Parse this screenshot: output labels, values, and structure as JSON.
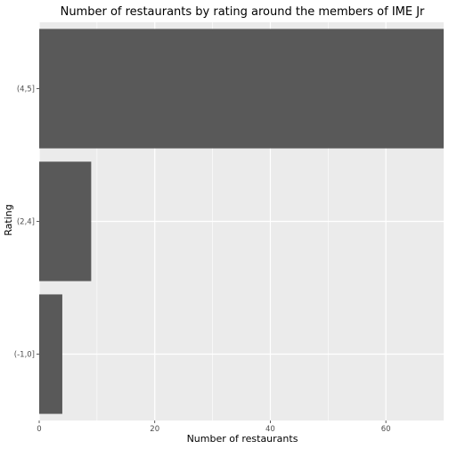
{
  "chart_data": {
    "type": "bar",
    "orientation": "horizontal",
    "title": "Number of restaurants by rating around the members of IME Jr",
    "xlabel": "Number of restaurants",
    "ylabel": "Rating",
    "categories": [
      "(-1,0]",
      "(2,4]",
      "(4,5]"
    ],
    "values": [
      4,
      9,
      70
    ],
    "xlim": [
      0,
      70
    ],
    "xticks": [
      0,
      20,
      40,
      60
    ],
    "grid": true,
    "colors": {
      "panel": "#ebebeb",
      "grid_major": "#ffffff",
      "bar": "#595959",
      "tick_text": "#4d4d4d"
    }
  }
}
